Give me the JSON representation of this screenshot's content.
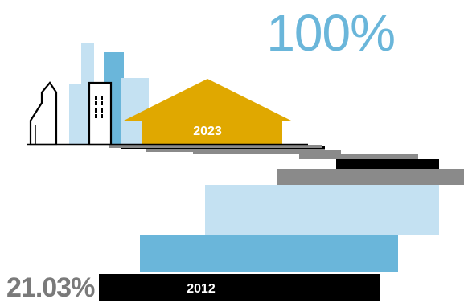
{
  "headline": {
    "top_value": "100%",
    "bottom_value": "21.03%"
  },
  "colors": {
    "dark": "#000000",
    "mid_blue": "#6ab6da",
    "light_blue": "#c4e1f2",
    "gray": "#8a8a8a",
    "gold": "#e0a800"
  },
  "chart_data": {
    "type": "bar",
    "orientation": "horizontal",
    "start_label": "2012",
    "end_label": "2023",
    "start_value_text": "21.03%",
    "end_value_text": "100%",
    "bars": [
      {
        "label": "2012",
        "color": "dark"
      },
      {
        "label": "",
        "color": "mid_blue"
      },
      {
        "label": "",
        "color": "light_blue"
      },
      {
        "label": "",
        "color": "gray"
      },
      {
        "label": "",
        "color": "dark"
      },
      {
        "label": "",
        "color": "gray"
      },
      {
        "label": "",
        "color": "gray"
      },
      {
        "label": "",
        "color": "gray"
      },
      {
        "label": "",
        "color": "dark"
      },
      {
        "label": "",
        "color": "gray"
      },
      {
        "label": "2023",
        "color": "gold"
      }
    ]
  }
}
